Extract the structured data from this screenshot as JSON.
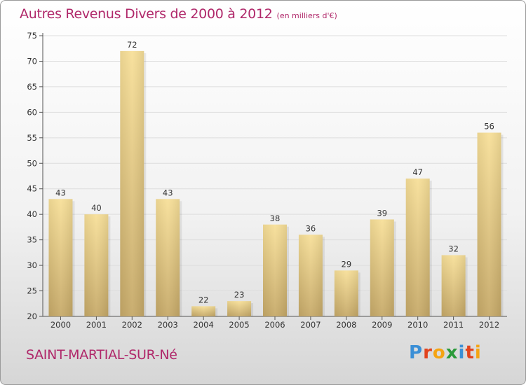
{
  "header": {
    "title": "Autres Revenus Divers de 2000 à 2012",
    "subtitle": "(en milliers d'€)"
  },
  "footer": {
    "commune": "SAINT-MARTIAL-SUR-Né",
    "logo_letters": [
      "P",
      "r",
      "o",
      "x",
      "i",
      "t",
      "i"
    ],
    "logo_colors": [
      "#3b8fd6",
      "#e2431d",
      "#f5a412",
      "#2b9a3a",
      "#3b8fd6",
      "#e2431d",
      "#f5a412"
    ]
  },
  "colors": {
    "bar_light": "#f7df98",
    "bar_dark": "#c6a968",
    "grid": "#dddddd",
    "axis": "#555555"
  },
  "chart_data": {
    "type": "bar",
    "categories": [
      "2000",
      "2001",
      "2002",
      "2003",
      "2004",
      "2005",
      "2006",
      "2007",
      "2008",
      "2009",
      "2010",
      "2011",
      "2012"
    ],
    "values": [
      43,
      40,
      72,
      43,
      22,
      23,
      38,
      36,
      29,
      39,
      47,
      32,
      56
    ],
    "title": "Autres Revenus Divers de 2000 à 2012",
    "subtitle": "(en milliers d'€)",
    "ylim": [
      20,
      75
    ],
    "yticks": [
      20,
      25,
      30,
      35,
      40,
      45,
      50,
      55,
      60,
      65,
      70,
      75
    ],
    "grid": true,
    "data_labels": true
  }
}
